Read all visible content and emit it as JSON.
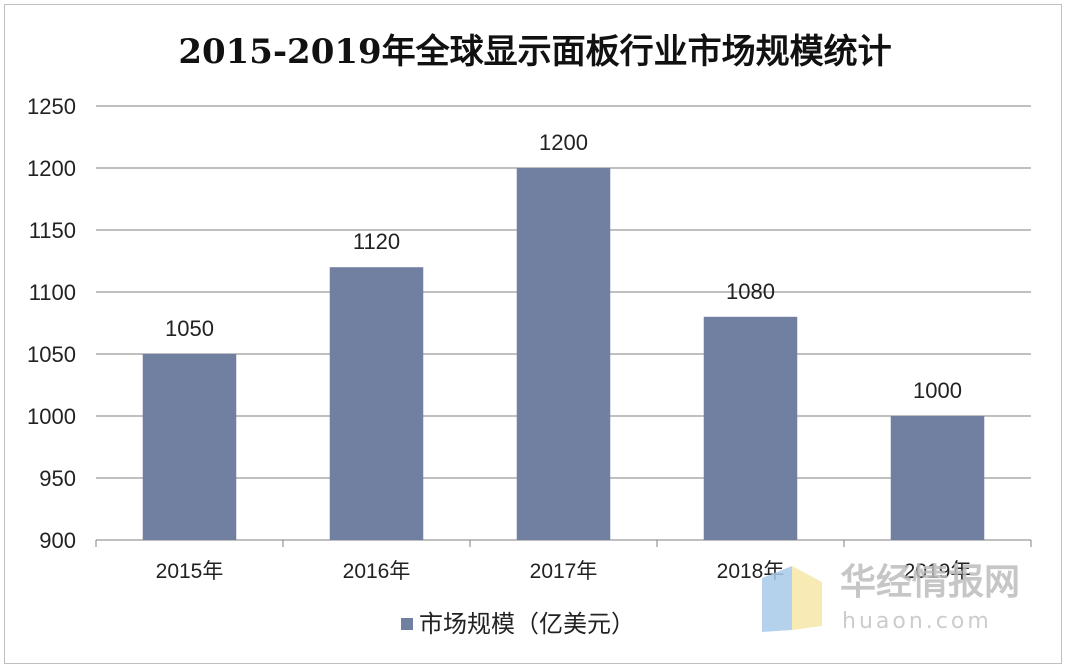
{
  "chart_data": {
    "type": "bar",
    "title": "2015-2019年全球显示面板行业市场规模统计",
    "categories": [
      "2015年",
      "2016年",
      "2017年",
      "2018年",
      "2019年"
    ],
    "series": [
      {
        "name": "市场规模（亿美元）",
        "values": [
          1050,
          1120,
          1200,
          1080,
          1000
        ]
      }
    ],
    "data_labels": [
      "1050",
      "1120",
      "1200",
      "1080",
      "1000"
    ],
    "y_ticks": [
      "900",
      "950",
      "1000",
      "1050",
      "1100",
      "1150",
      "1200",
      "1250"
    ],
    "ylim": [
      900,
      1250
    ],
    "grid": true,
    "legend_position": "bottom",
    "colors": {
      "bar": "#717fa0",
      "grid": "#808080",
      "axis": "#808080"
    }
  },
  "watermark": {
    "name": "华经情报网",
    "domain": "huaon.com"
  }
}
